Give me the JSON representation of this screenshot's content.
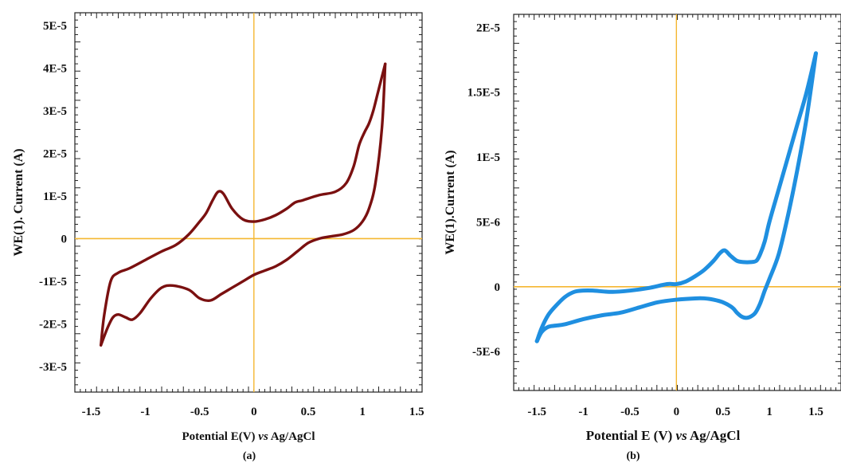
{
  "chart_data": [
    {
      "type": "line",
      "panel_label": "(a)",
      "xlabel_pre": "Potential E(V) ",
      "xlabel_vs": "vs",
      "xlabel_post": " Ag/AgCl",
      "ylabel": "WE(1). Current (A)",
      "xlim": [
        -1.65,
        1.55
      ],
      "ylim": [
        -3.6e-05,
        5.3e-05
      ],
      "x_ticks": [
        -1.5,
        -1,
        -0.5,
        0,
        0.5,
        1,
        1.5
      ],
      "x_tick_labels": [
        "-1.5",
        "-1",
        "-0.5",
        "0",
        "0.5",
        "1",
        "1.5"
      ],
      "y_ticks": [
        5e-05,
        4e-05,
        3e-05,
        2e-05,
        1e-05,
        0,
        -1e-05,
        -2e-05,
        -3e-05
      ],
      "y_tick_labels": [
        "5E-5",
        "4E-5",
        "3E-5",
        "2E-5",
        "1E-5",
        "0",
        "-1E-5",
        "-2E-5",
        "-3E-5"
      ],
      "grid": false,
      "color": "#7a1010",
      "axis_line_color": "#f5b731",
      "series": [
        {
          "x": [
            -1.41,
            -1.38,
            -1.32,
            -1.25,
            -1.15,
            -1.0,
            -0.85,
            -0.72,
            -0.6,
            -0.5,
            -0.44,
            -0.38,
            -0.33,
            -0.28,
            -0.2,
            -0.1,
            0.0,
            0.1,
            0.2,
            0.3,
            0.38,
            0.45,
            0.6,
            0.75,
            0.85,
            0.92,
            0.97,
            1.02,
            1.06,
            1.1,
            1.14,
            1.18,
            1.21
          ],
          "y": [
            -2.5e-05,
            -1.8e-05,
            -1e-05,
            -8e-06,
            -7e-06,
            -5e-06,
            -3e-06,
            -1.5e-06,
            1e-06,
            4e-06,
            6e-06,
            9e-06,
            1.1e-05,
            1.05e-05,
            7e-06,
            4.5e-06,
            4e-06,
            4.5e-06,
            5.5e-06,
            7e-06,
            8.5e-06,
            9e-06,
            1.02e-05,
            1.1e-05,
            1.3e-05,
            1.7e-05,
            2.2e-05,
            2.5e-05,
            2.7e-05,
            3e-05,
            3.4e-05,
            3.8e-05,
            4.1e-05
          ]
        },
        {
          "x": [
            1.21,
            1.18,
            1.12,
            1.06,
            1.0,
            0.92,
            0.82,
            0.7,
            0.6,
            0.5,
            0.4,
            0.3,
            0.2,
            0.1,
            0.0,
            -0.1,
            -0.2,
            -0.3,
            -0.4,
            -0.5,
            -0.6,
            -0.75,
            -0.85,
            -0.95,
            -1.05,
            -1.12,
            -1.18,
            -1.25,
            -1.3,
            -1.35,
            -1.41
          ],
          "y": [
            4.1e-05,
            2.6e-05,
            1.3e-05,
            7e-06,
            4e-06,
            2e-06,
            1e-06,
            5e-07,
            0,
            -1e-06,
            -3e-06,
            -5e-06,
            -6.5e-06,
            -7.5e-06,
            -8.5e-06,
            -1e-05,
            -1.15e-05,
            -1.3e-05,
            -1.45e-05,
            -1.4e-05,
            -1.2e-05,
            -1.1e-05,
            -1.15e-05,
            -1.4e-05,
            -1.75e-05,
            -1.9e-05,
            -1.85e-05,
            -1.78e-05,
            -1.85e-05,
            -2.1e-05,
            -2.5e-05
          ]
        }
      ]
    },
    {
      "type": "line",
      "panel_label": "(b)",
      "xlabel_pre": "Potential E (V) ",
      "xlabel_vs": "vs",
      "xlabel_post": " Ag/AgCl",
      "ylabel": "WE(1).Current (A)",
      "xlim": [
        -1.75,
        1.77
      ],
      "ylim": [
        -8e-06,
        2.1e-05
      ],
      "x_ticks": [
        -1.5,
        -1,
        -0.5,
        0,
        0.5,
        1,
        1.5
      ],
      "x_tick_labels": [
        "-1.5",
        "-1",
        "-0.5",
        "0",
        "0.5",
        "1",
        "1.5"
      ],
      "y_ticks": [
        2e-05,
        1.5e-05,
        1e-05,
        5e-06,
        0,
        -5e-06
      ],
      "y_tick_labels": [
        "2E-5",
        "1.5E-5",
        "1E-5",
        "5E-6",
        "0",
        "-5E-6"
      ],
      "grid": false,
      "color": "#1f8fe0",
      "axis_line_color": "#f5b731",
      "series": [
        {
          "x": [
            -1.5,
            -1.45,
            -1.38,
            -1.3,
            -1.2,
            -1.1,
            -1.0,
            -0.9,
            -0.7,
            -0.5,
            -0.3,
            -0.1,
            0.0,
            0.1,
            0.2,
            0.3,
            0.4,
            0.47,
            0.52,
            0.58,
            0.65,
            0.72,
            0.8,
            0.86,
            0.9,
            0.95,
            1.0,
            1.1,
            1.2,
            1.3,
            1.4,
            1.5
          ],
          "y": [
            -4.2e-06,
            -3.2e-06,
            -2.2e-06,
            -1.5e-06,
            -8e-07,
            -4e-07,
            -3e-07,
            -3e-07,
            -4e-07,
            -3e-07,
            -1e-07,
            2e-07,
            2e-07,
            4e-07,
            8e-07,
            1.3e-06,
            2e-06,
            2.6e-06,
            2.8e-06,
            2.4e-06,
            2e-06,
            1.9e-06,
            1.9e-06,
            2e-06,
            2.5e-06,
            3.5e-06,
            5e-06,
            7.5e-06,
            1e-05,
            1.25e-05,
            1.5e-05,
            1.8e-05
          ]
        },
        {
          "x": [
            1.5,
            1.4,
            1.3,
            1.2,
            1.1,
            1.0,
            0.95,
            0.9,
            0.85,
            0.8,
            0.75,
            0.7,
            0.65,
            0.6,
            0.5,
            0.4,
            0.3,
            0.2,
            0.0,
            -0.2,
            -0.4,
            -0.6,
            -0.8,
            -1.0,
            -1.2,
            -1.3,
            -1.38,
            -1.45,
            -1.5
          ],
          "y": [
            1.8e-05,
            1.3e-05,
            9e-06,
            5.5e-06,
            2.5e-06,
            6e-07,
            -3e-07,
            -1.3e-06,
            -2e-06,
            -2.3e-06,
            -2.4e-06,
            -2.3e-06,
            -2e-06,
            -1.6e-06,
            -1.2e-06,
            -1e-06,
            -9e-07,
            -9e-07,
            -1e-06,
            -1.2e-06,
            -1.6e-06,
            -2e-06,
            -2.2e-06,
            -2.5e-06,
            -2.9e-06,
            -3e-06,
            -3.1e-06,
            -3.5e-06,
            -4.2e-06
          ]
        }
      ]
    }
  ]
}
